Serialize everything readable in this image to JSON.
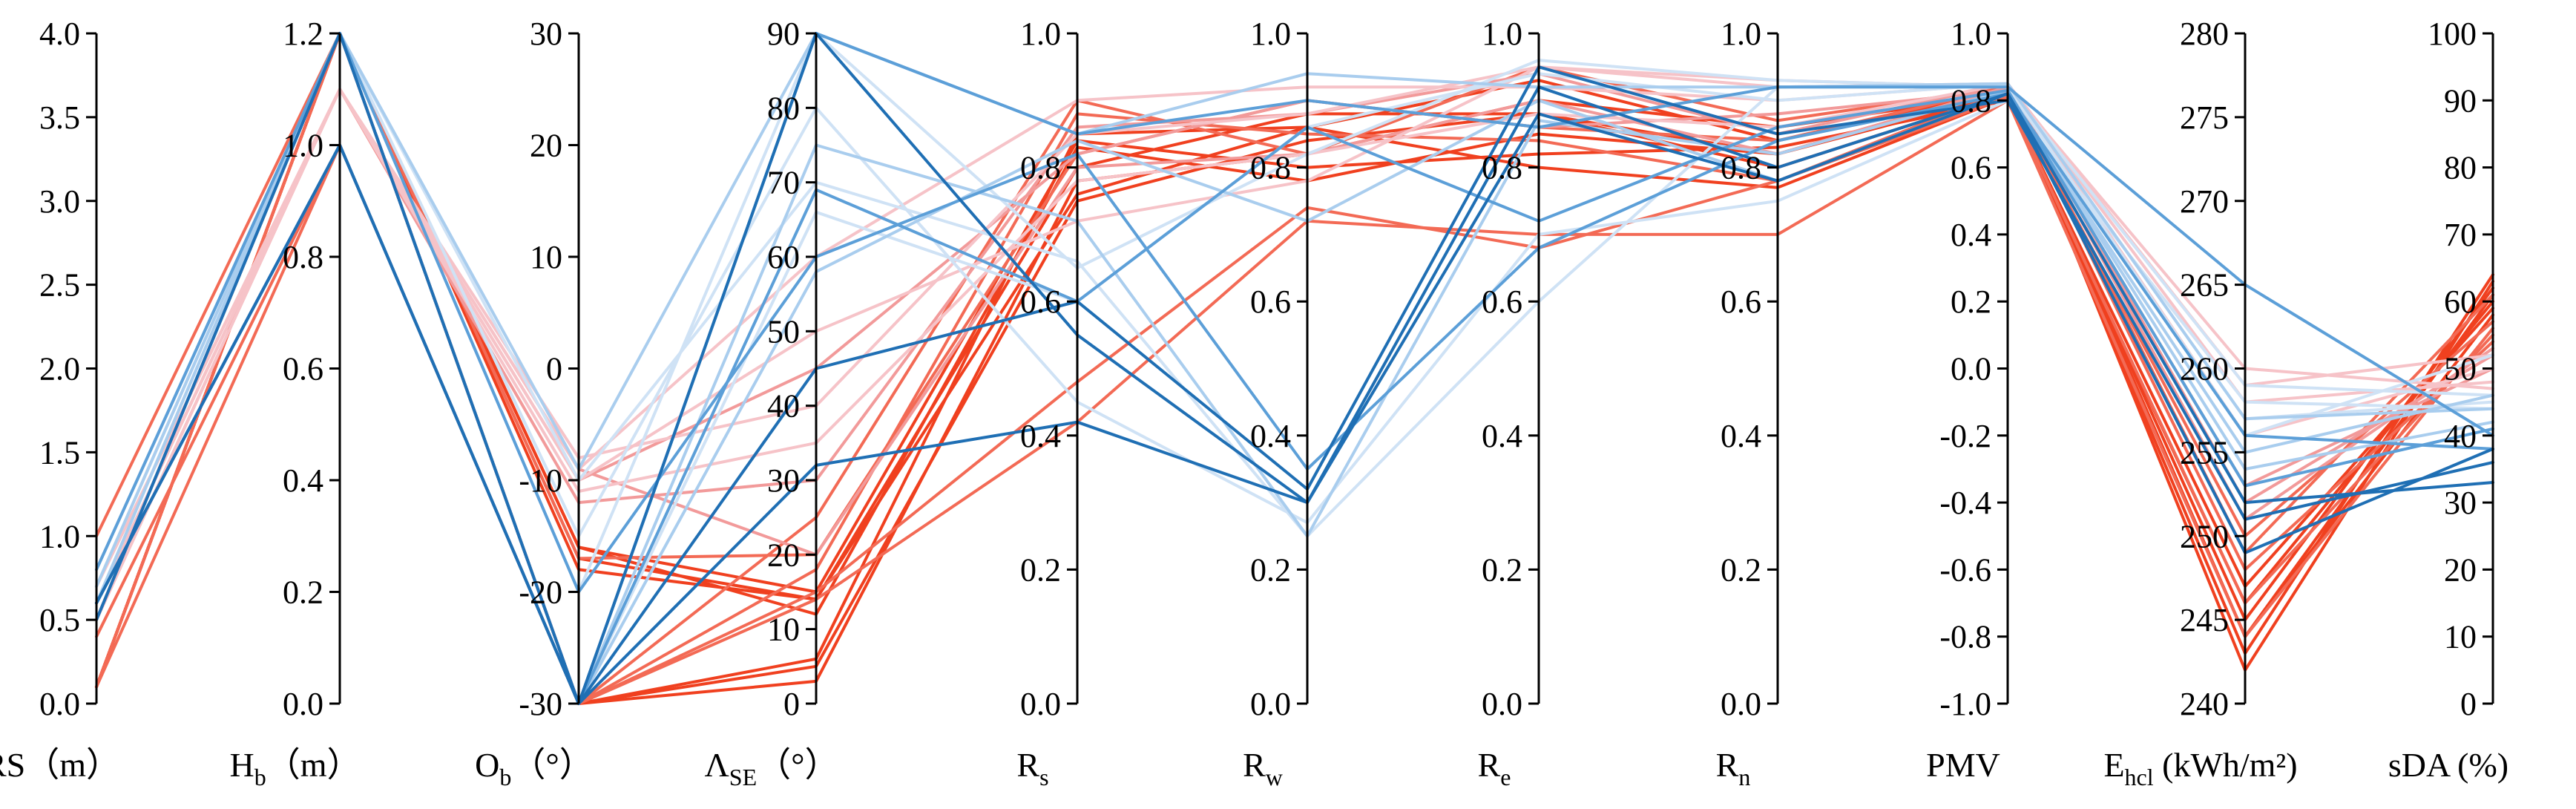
{
  "chart_data": {
    "type": "parallel-coordinates",
    "axes": [
      {
        "label": "RS",
        "sub": "",
        "unit": "（m）",
        "min": 0,
        "max": 4,
        "ticks": [
          "0.0",
          "0.5",
          "1.0",
          "1.5",
          "2.0",
          "2.5",
          "3.0",
          "3.5",
          "4.0"
        ]
      },
      {
        "label": "H",
        "sub": "b",
        "unit": "（m）",
        "min": 0,
        "max": 1.2,
        "ticks": [
          "0.0",
          "0.2",
          "0.4",
          "0.6",
          "0.8",
          "1.0",
          "1.2"
        ]
      },
      {
        "label": "O",
        "sub": "b",
        "unit": "（°）",
        "min": -30,
        "max": 30,
        "ticks": [
          "-30",
          "-20",
          "-10",
          "0",
          "10",
          "20",
          "30"
        ]
      },
      {
        "label": "Λ",
        "sub": "SE",
        "unit": "（°）",
        "min": 0,
        "max": 90,
        "ticks": [
          "0",
          "10",
          "20",
          "30",
          "40",
          "50",
          "60",
          "70",
          "80",
          "90"
        ]
      },
      {
        "label": "R",
        "sub": "s",
        "unit": "",
        "min": 0,
        "max": 1,
        "ticks": [
          "0.0",
          "0.2",
          "0.4",
          "0.6",
          "0.8",
          "1.0"
        ]
      },
      {
        "label": "R",
        "sub": "w",
        "unit": "",
        "min": 0,
        "max": 1,
        "ticks": [
          "0.0",
          "0.2",
          "0.4",
          "0.6",
          "0.8",
          "1.0"
        ]
      },
      {
        "label": "R",
        "sub": "e",
        "unit": "",
        "min": 0,
        "max": 1,
        "ticks": [
          "0.0",
          "0.2",
          "0.4",
          "0.6",
          "0.8",
          "1.0"
        ]
      },
      {
        "label": "R",
        "sub": "n",
        "unit": "",
        "min": 0,
        "max": 1,
        "ticks": [
          "0.0",
          "0.2",
          "0.4",
          "0.6",
          "0.8",
          "1.0"
        ]
      },
      {
        "label": "PMV",
        "sub": "",
        "unit": "",
        "min": -1,
        "max": 1,
        "ticks": [
          "-1.0",
          "-0.8",
          "-0.6",
          "-0.4",
          "-0.2",
          "0.0",
          "0.2",
          "0.4",
          "0.6",
          "0.8",
          "1.0"
        ]
      },
      {
        "label": "E",
        "sub": "hcl",
        "unit": " (kWh/m²)",
        "min": 240,
        "max": 280,
        "ticks": [
          "240",
          "245",
          "250",
          "255",
          "260",
          "265",
          "270",
          "275",
          "280"
        ]
      },
      {
        "label": "sDA",
        "sub": "",
        "unit": " (%)",
        "min": 0,
        "max": 100,
        "ticks": [
          "0",
          "10",
          "20",
          "30",
          "40",
          "50",
          "60",
          "70",
          "80",
          "90",
          "100"
        ]
      }
    ],
    "palette": {
      "dark_blue": "#1f6fb4",
      "mid_blue": "#5c9fd8",
      "light_blue": "#a9cdee",
      "pale_blue": "#cfe2f5",
      "pale_pink": "#f6c3c8",
      "pink": "#f29a9a",
      "salmon": "#f36a55",
      "red": "#f0401f"
    },
    "series": [
      {
        "color": "#f0401f",
        "values": [
          0.1,
          1.2,
          -30,
          3,
          0.78,
          0.82,
          0.9,
          0.86,
          0.82,
          243,
          64
        ]
      },
      {
        "color": "#f0401f",
        "values": [
          0.1,
          1.2,
          -30,
          5,
          0.75,
          0.84,
          0.88,
          0.82,
          0.84,
          242,
          63
        ]
      },
      {
        "color": "#f0401f",
        "values": [
          0.1,
          1.2,
          -30,
          6,
          0.85,
          0.86,
          0.93,
          0.84,
          0.83,
          244,
          61
        ]
      },
      {
        "color": "#f0401f",
        "values": [
          0.1,
          1.2,
          -17,
          14,
          0.8,
          0.88,
          0.88,
          0.8,
          0.82,
          245,
          62
        ]
      },
      {
        "color": "#f0401f",
        "values": [
          0.1,
          1.2,
          -16,
          15,
          0.84,
          0.8,
          0.82,
          0.83,
          0.8,
          246,
          60
        ]
      },
      {
        "color": "#f0401f",
        "values": [
          0.1,
          1.2,
          -18,
          14,
          0.76,
          0.86,
          0.8,
          0.77,
          0.81,
          247,
          59
        ]
      },
      {
        "color": "#f0401f",
        "values": [
          0.1,
          1.2,
          -16,
          12,
          0.83,
          0.78,
          0.85,
          0.82,
          0.82,
          244,
          58
        ]
      },
      {
        "color": "#f36a55",
        "values": [
          0.1,
          1.0,
          -30,
          14,
          0.42,
          0.72,
          0.7,
          0.7,
          0.8,
          244,
          56
        ]
      },
      {
        "color": "#f36a55",
        "values": [
          0.4,
          1.0,
          -30,
          15,
          0.48,
          0.74,
          0.68,
          0.78,
          0.81,
          246,
          55
        ]
      },
      {
        "color": "#f36a55",
        "values": [
          1.0,
          1.2,
          -17,
          20,
          0.82,
          0.9,
          0.86,
          0.84,
          0.84,
          248,
          54
        ]
      },
      {
        "color": "#f36a55",
        "values": [
          0.5,
          1.2,
          -30,
          18,
          0.88,
          0.85,
          0.84,
          0.78,
          0.83,
          250,
          57
        ]
      },
      {
        "color": "#f36a55",
        "values": [
          0.1,
          1.2,
          -30,
          25,
          0.9,
          0.82,
          0.95,
          0.87,
          0.84,
          249,
          61
        ]
      },
      {
        "color": "#f29a9a",
        "values": [
          0.6,
          1.1,
          -9,
          20,
          0.8,
          0.82,
          0.9,
          0.82,
          0.84,
          251,
          53
        ]
      },
      {
        "color": "#f29a9a",
        "values": [
          0.5,
          1.1,
          -12,
          30,
          0.86,
          0.88,
          0.94,
          0.85,
          0.85,
          252,
          52
        ]
      },
      {
        "color": "#f29a9a",
        "values": [
          0.7,
          1.1,
          -10,
          45,
          0.82,
          0.9,
          0.86,
          0.88,
          0.83,
          253,
          50
        ]
      },
      {
        "color": "#f6c3c8",
        "values": [
          0.6,
          1.1,
          -9,
          60,
          0.9,
          0.92,
          0.92,
          0.9,
          0.85,
          256,
          50
        ]
      },
      {
        "color": "#f6c3c8",
        "values": [
          0.5,
          1.1,
          -10,
          50,
          0.72,
          0.78,
          0.95,
          0.92,
          0.85,
          258,
          48
        ]
      },
      {
        "color": "#f6c3c8",
        "values": [
          0.6,
          1.1,
          -8,
          40,
          0.85,
          0.88,
          0.95,
          0.93,
          0.84,
          260,
          47
        ]
      },
      {
        "color": "#f6c3c8",
        "values": [
          0.7,
          1.1,
          -11,
          35,
          0.78,
          0.82,
          0.88,
          0.86,
          0.85,
          259,
          52
        ]
      },
      {
        "color": "#cfe2f5",
        "values": [
          0.7,
          1.2,
          -20,
          90,
          0.65,
          0.82,
          0.96,
          0.93,
          0.84,
          259,
          46
        ]
      },
      {
        "color": "#cfe2f5",
        "values": [
          0.6,
          1.2,
          -15,
          80,
          0.45,
          0.27,
          0.7,
          0.75,
          0.8,
          258,
          44
        ]
      },
      {
        "color": "#cfe2f5",
        "values": [
          0.7,
          1.2,
          -10,
          70,
          0.66,
          0.25,
          0.6,
          0.92,
          0.84,
          256,
          52
        ]
      },
      {
        "color": "#cfe2f5",
        "values": [
          0.6,
          1.0,
          -30,
          66,
          0.6,
          0.86,
          0.94,
          0.9,
          0.85,
          257,
          45
        ]
      },
      {
        "color": "#a9cdee",
        "values": [
          0.8,
          1.2,
          -9,
          90,
          0.85,
          0.94,
          0.92,
          0.92,
          0.85,
          257,
          44
        ]
      },
      {
        "color": "#a9cdee",
        "values": [
          0.7,
          1.2,
          -30,
          75,
          0.72,
          0.25,
          0.87,
          0.82,
          0.83,
          254,
          42
        ]
      },
      {
        "color": "#a9cdee",
        "values": [
          0.6,
          1.2,
          -30,
          58,
          0.84,
          0.72,
          0.9,
          0.78,
          0.82,
          255,
          46
        ]
      },
      {
        "color": "#5c9fd8",
        "values": [
          0.8,
          1.2,
          -30,
          90,
          0.85,
          0.9,
          0.86,
          0.92,
          0.84,
          265,
          40
        ]
      },
      {
        "color": "#5c9fd8",
        "values": [
          0.5,
          1.2,
          -20,
          60,
          0.82,
          0.35,
          0.68,
          0.84,
          0.82,
          256,
          38
        ]
      },
      {
        "color": "#5c9fd8",
        "values": [
          0.6,
          1.0,
          -30,
          69,
          0.6,
          0.86,
          0.72,
          0.86,
          0.83,
          253,
          41
        ]
      },
      {
        "color": "#1f6fb4",
        "values": [
          0.6,
          1.0,
          -30,
          32,
          0.42,
          0.3,
          0.92,
          0.8,
          0.82,
          252,
          33
        ]
      },
      {
        "color": "#1f6fb4",
        "values": [
          0.6,
          1.0,
          -30,
          45,
          0.6,
          0.32,
          0.95,
          0.85,
          0.8,
          251,
          36
        ]
      },
      {
        "color": "#1f6fb4",
        "values": [
          0.5,
          1.2,
          -30,
          90,
          0.55,
          0.3,
          0.88,
          0.78,
          0.82,
          249,
          38
        ]
      }
    ]
  }
}
